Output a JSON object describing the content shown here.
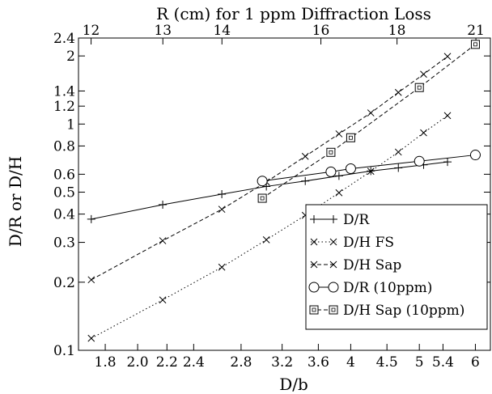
{
  "chart_data": {
    "type": "line",
    "title": "R (cm) for 1 ppm Diffraction Loss",
    "xlabel": "D/b",
    "ylabel": "D/R or D/H",
    "x_scale": "log",
    "y_scale": "log",
    "xlim": [
      1.65,
      6.3
    ],
    "ylim": [
      0.1,
      2.4
    ],
    "x_ticks": [
      {
        "value": 1.8,
        "label": "1.8"
      },
      {
        "value": 2.0,
        "label": "2.0"
      },
      {
        "value": 2.2,
        "label": "2.2"
      },
      {
        "value": 2.4,
        "label": "2.4"
      },
      {
        "value": 2.8,
        "label": "2.8"
      },
      {
        "value": 3.2,
        "label": "3.2"
      },
      {
        "value": 3.6,
        "label": "3.6"
      },
      {
        "value": 4.0,
        "label": "4"
      },
      {
        "value": 4.5,
        "label": "4.5"
      },
      {
        "value": 5.0,
        "label": "5"
      },
      {
        "value": 5.4,
        "label": "5.4"
      },
      {
        "value": 6.0,
        "label": "6"
      }
    ],
    "top_ticks": [
      {
        "value": 1.719,
        "label": "12"
      },
      {
        "value": 2.171,
        "label": "13"
      },
      {
        "value": 2.631,
        "label": "14"
      },
      {
        "value": 3.63,
        "label": "16"
      },
      {
        "value": 4.65,
        "label": "18"
      },
      {
        "value": 6.01,
        "label": "21"
      }
    ],
    "y_ticks": [
      {
        "value": 0.1,
        "label": "0.1"
      },
      {
        "value": 0.2,
        "label": "0.2"
      },
      {
        "value": 0.3,
        "label": "0.3"
      },
      {
        "value": 0.4,
        "label": "0.4"
      },
      {
        "value": 0.5,
        "label": "0.5"
      },
      {
        "value": 0.6,
        "label": "0.6"
      },
      {
        "value": 0.8,
        "label": "0.8"
      },
      {
        "value": 1.0,
        "label": "1"
      },
      {
        "value": 1.2,
        "label": "1.2"
      },
      {
        "value": 1.4,
        "label": "1.4"
      },
      {
        "value": 2.0,
        "label": "2"
      },
      {
        "value": 2.4,
        "label": "2.4"
      }
    ],
    "grid": false,
    "legend_position": "bottom-right",
    "series": [
      {
        "name": "D/R",
        "marker": "plus",
        "dash": "solid",
        "x": [
          1.72,
          2.17,
          2.63,
          3.04,
          3.45,
          3.85,
          4.27,
          4.67,
          5.07,
          5.48
        ],
        "y": [
          0.38,
          0.44,
          0.49,
          0.53,
          0.56,
          0.59,
          0.62,
          0.64,
          0.66,
          0.68
        ]
      },
      {
        "name": "D/H FS",
        "marker": "x",
        "dash": "dotted",
        "x": [
          1.72,
          2.17,
          2.63,
          3.04,
          3.45,
          3.85,
          4.27,
          4.67,
          5.07,
          5.48
        ],
        "y": [
          0.113,
          0.167,
          0.233,
          0.308,
          0.395,
          0.497,
          0.618,
          0.752,
          0.915,
          1.09
        ]
      },
      {
        "name": "D/H Sap",
        "marker": "x",
        "dash": "dashed",
        "x": [
          1.72,
          2.17,
          2.63,
          3.04,
          3.45,
          3.85,
          4.27,
          4.67,
          5.07,
          5.48
        ],
        "y": [
          0.205,
          0.305,
          0.42,
          0.555,
          0.72,
          0.905,
          1.12,
          1.38,
          1.66,
          1.99
        ]
      },
      {
        "name": "D/R (10ppm)",
        "marker": "circle",
        "dash": "solid",
        "x": [
          3.0,
          3.75,
          4.0,
          5.0,
          6.0
        ],
        "y": [
          0.56,
          0.615,
          0.635,
          0.685,
          0.73
        ]
      },
      {
        "name": "D/H Sap (10ppm)",
        "marker": "square",
        "dash": "dashed",
        "x": [
          3.0,
          3.75,
          4.0,
          5.0,
          6.0
        ],
        "y": [
          0.47,
          0.75,
          0.87,
          1.45,
          2.25
        ]
      }
    ]
  }
}
